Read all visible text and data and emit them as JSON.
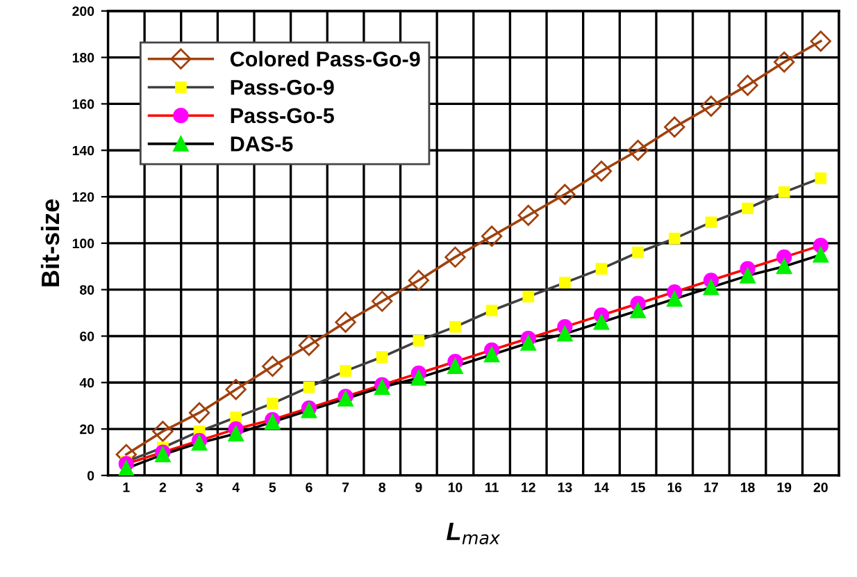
{
  "chart_data": {
    "type": "line",
    "xlabel": "L$_{max}$",
    "ylabel": "Bit-size",
    "categories": [
      "1",
      "2",
      "3",
      "4",
      "5",
      "6",
      "7",
      "8",
      "9",
      "10",
      "11",
      "12",
      "13",
      "14",
      "15",
      "16",
      "17",
      "18",
      "19",
      "20"
    ],
    "ylim": [
      0,
      200
    ],
    "yticks": [
      0,
      20,
      40,
      60,
      80,
      100,
      120,
      140,
      160,
      180,
      200
    ],
    "grid": true,
    "legend": "top left",
    "series": [
      {
        "name": "Colored Pass-Go-9",
        "color": "#a0410d",
        "colors": [
          "#a0410d",
          "#a0410d",
          "#a0410d",
          "#a0410d",
          "#a0410d",
          "#a0410d",
          "#a0410d",
          "#a0410d",
          "#a0410d",
          "#a0410d",
          "#a0410d",
          "#a0410d",
          "#a0410d",
          "#a0410d",
          "#a0410d",
          "#a0410d",
          "#a0410d",
          "#a0410d",
          "#a0410d",
          "#a0410d"
        ],
        "marker": "diamond",
        "values": [
          9,
          19,
          27,
          37,
          47,
          56,
          66,
          75,
          84,
          94,
          103,
          112,
          121,
          131,
          140,
          150,
          159,
          168,
          178,
          187
        ]
      },
      {
        "name": "Pass-Go-9",
        "color": "#404040",
        "colors": [
          "#ffff00",
          "#ffff00",
          "#ffff00",
          "#ffff00",
          "#ffff00",
          "#ffff00",
          "#ffff00",
          "#ffff00",
          "#ffff00",
          "#ffff00",
          "#ffff00",
          "#ffff00",
          "#ffff00",
          "#ffff00",
          "#ffff00",
          "#ffff00",
          "#ffff00",
          "#ffff00",
          "#ffff00",
          "#ffff00"
        ],
        "marker": "square",
        "values": [
          6,
          12,
          19,
          25,
          31,
          38,
          45,
          51,
          58,
          64,
          71,
          77,
          83,
          89,
          96,
          102,
          109,
          115,
          122,
          128
        ]
      },
      {
        "name": "Pass-Go-5",
        "color": "#ff0000",
        "colors": [
          "#ff00ff",
          "#ff00ff",
          "#ff00ff",
          "#ff00ff",
          "#ff00ff",
          "#ff00ff",
          "#ff00ff",
          "#ff00ff",
          "#ff00ff",
          "#ff00ff",
          "#ff00ff",
          "#ff00ff",
          "#ff00ff",
          "#ff00ff",
          "#ff00ff",
          "#ff00ff",
          "#ff00ff",
          "#ff00ff",
          "#ff00ff",
          "#ff00ff"
        ],
        "marker": "circle",
        "values": [
          5,
          10,
          15,
          20,
          24,
          29,
          34,
          39,
          44,
          49,
          54,
          59,
          64,
          69,
          74,
          79,
          84,
          89,
          94,
          99
        ]
      },
      {
        "name": "DAS-5",
        "color": "#000000",
        "colors": [
          "#00ee00",
          "#00ee00",
          "#00ee00",
          "#00ee00",
          "#00ee00",
          "#00ee00",
          "#00ee00",
          "#00ee00",
          "#00ee00",
          "#00ee00",
          "#00ee00",
          "#00ee00",
          "#00ee00",
          "#00ee00",
          "#00ee00",
          "#00ee00",
          "#00ee00",
          "#00ee00",
          "#00ee00",
          "#00ee00"
        ],
        "marker": "triangle",
        "values": [
          3,
          9,
          14,
          18,
          23,
          28,
          33,
          38,
          42,
          47,
          52,
          57,
          61,
          66,
          71,
          76,
          81,
          86,
          90,
          95
        ]
      }
    ]
  }
}
